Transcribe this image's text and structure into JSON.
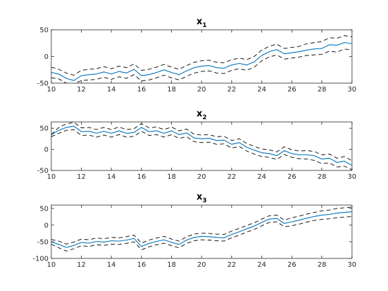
{
  "chart_data": [
    {
      "type": "line",
      "title": "x",
      "title_subscript": "1",
      "xlim": [
        10,
        30
      ],
      "ylim": [
        -50,
        50
      ],
      "xticks": [
        10,
        12,
        14,
        16,
        18,
        20,
        22,
        24,
        26,
        28,
        30
      ],
      "yticks": [
        -50,
        0,
        50
      ],
      "x": [
        10.0,
        10.5,
        11.0,
        11.5,
        12.0,
        12.5,
        13.0,
        13.5,
        14.0,
        14.5,
        15.0,
        15.5,
        16.0,
        16.5,
        17.0,
        17.5,
        18.0,
        18.5,
        19.0,
        19.5,
        20.0,
        20.5,
        21.0,
        21.5,
        22.0,
        22.5,
        23.0,
        23.5,
        24.0,
        24.5,
        25.0,
        25.5,
        26.0,
        26.5,
        27.0,
        27.5,
        28.0,
        28.5,
        29.0,
        29.5,
        30.0
      ],
      "series": [
        {
          "role": "estimate",
          "color": "#0072BD",
          "style": "solid",
          "values": [
            -30,
            -33,
            -41,
            -45,
            -36,
            -34,
            -33,
            -29,
            -33,
            -28,
            -31,
            -24,
            -36,
            -34,
            -30,
            -25,
            -30,
            -34,
            -27,
            -21,
            -18,
            -17,
            -21,
            -22,
            -16,
            -13,
            -16,
            -10,
            2,
            9,
            13,
            5,
            7,
            9,
            12,
            14,
            15,
            22,
            21,
            26,
            24
          ]
        },
        {
          "role": "upper_bound",
          "color": "#000000",
          "style": "dashed",
          "values": [
            -20,
            -24,
            -31,
            -35,
            -26,
            -24,
            -23,
            -19,
            -23,
            -18,
            -21,
            -14,
            -26,
            -24,
            -20,
            -15,
            -20,
            -24,
            -17,
            -11,
            -8,
            -7,
            -11,
            -12,
            -6,
            -3,
            -6,
            0,
            12,
            19,
            23,
            15,
            17,
            19,
            24,
            26,
            28,
            35,
            34,
            39,
            37
          ]
        },
        {
          "role": "lower_bound",
          "color": "#000000",
          "style": "dashed",
          "values": [
            -40,
            -42,
            -50,
            -52,
            -45,
            -44,
            -43,
            -39,
            -43,
            -38,
            -41,
            -34,
            -46,
            -44,
            -40,
            -35,
            -40,
            -44,
            -37,
            -31,
            -28,
            -27,
            -31,
            -32,
            -26,
            -23,
            -26,
            -20,
            -8,
            -1,
            3,
            -5,
            -3,
            -1,
            2,
            3,
            4,
            10,
            8,
            14,
            12
          ]
        }
      ]
    },
    {
      "type": "line",
      "title": "x",
      "title_subscript": "2",
      "xlim": [
        10,
        30
      ],
      "ylim": [
        -50,
        65
      ],
      "xticks": [
        10,
        12,
        14,
        16,
        18,
        20,
        22,
        24,
        26,
        28,
        30
      ],
      "yticks": [
        -50,
        0,
        50
      ],
      "x": [
        10.0,
        10.5,
        11.0,
        11.5,
        12.0,
        12.5,
        13.0,
        13.5,
        14.0,
        14.5,
        15.0,
        15.5,
        16.0,
        16.5,
        17.0,
        17.5,
        18.0,
        18.5,
        19.0,
        19.5,
        20.0,
        20.5,
        21.0,
        21.5,
        22.0,
        22.5,
        23.0,
        23.5,
        24.0,
        24.5,
        25.0,
        25.5,
        26.0,
        26.5,
        27.0,
        27.5,
        28.0,
        28.5,
        29.0,
        29.5,
        30.0
      ],
      "series": [
        {
          "role": "estimate",
          "color": "#0072BD",
          "style": "solid",
          "values": [
            35,
            45,
            52,
            55,
            42,
            43,
            38,
            43,
            38,
            44,
            38,
            40,
            52,
            42,
            44,
            38,
            44,
            35,
            39,
            27,
            25,
            26,
            21,
            22,
            12,
            16,
            5,
            -2,
            -8,
            -10,
            -15,
            -3,
            -10,
            -13,
            -13,
            -15,
            -23,
            -21,
            -31,
            -28,
            -38
          ]
        },
        {
          "role": "upper_bound",
          "color": "#000000",
          "style": "dashed",
          "values": [
            35,
            52,
            60,
            64,
            51,
            52,
            47,
            52,
            47,
            53,
            47,
            49,
            61,
            51,
            53,
            47,
            53,
            44,
            48,
            36,
            34,
            35,
            30,
            31,
            21,
            25,
            14,
            7,
            1,
            -1,
            -6,
            6,
            -1,
            -4,
            -3,
            -5,
            -13,
            -11,
            -21,
            -17,
            -27
          ]
        },
        {
          "role": "lower_bound",
          "color": "#000000",
          "style": "dashed",
          "values": [
            30,
            38,
            45,
            47,
            33,
            34,
            29,
            34,
            29,
            35,
            29,
            31,
            43,
            33,
            35,
            29,
            35,
            26,
            30,
            18,
            16,
            17,
            12,
            13,
            3,
            7,
            -4,
            -11,
            -17,
            -19,
            -24,
            -12,
            -19,
            -22,
            -23,
            -26,
            -34,
            -32,
            -42,
            -40,
            -48
          ]
        }
      ]
    },
    {
      "type": "line",
      "title": "x",
      "title_subscript": "3",
      "xlim": [
        10,
        30
      ],
      "ylim": [
        -100,
        60
      ],
      "xticks": [
        10,
        12,
        14,
        16,
        18,
        20,
        22,
        24,
        26,
        28,
        30
      ],
      "yticks": [
        -100,
        -50,
        0,
        50
      ],
      "x": [
        10.0,
        10.5,
        11.0,
        11.5,
        12.0,
        12.5,
        13.0,
        13.5,
        14.0,
        14.5,
        15.0,
        15.5,
        16.0,
        16.5,
        17.0,
        17.5,
        18.0,
        18.5,
        19.0,
        19.5,
        20.0,
        20.5,
        21.0,
        21.5,
        22.0,
        22.5,
        23.0,
        23.5,
        24.0,
        24.5,
        25.0,
        25.5,
        26.0,
        26.5,
        27.0,
        27.5,
        28.0,
        28.5,
        29.0,
        29.5,
        30.0
      ],
      "series": [
        {
          "role": "estimate",
          "color": "#0072BD",
          "style": "solid",
          "values": [
            -50,
            -58,
            -67,
            -61,
            -52,
            -54,
            -49,
            -51,
            -47,
            -48,
            -45,
            -40,
            -64,
            -55,
            -49,
            -44,
            -52,
            -58,
            -45,
            -37,
            -34,
            -35,
            -37,
            -38,
            -28,
            -20,
            -11,
            -3,
            8,
            18,
            20,
            5,
            10,
            15,
            21,
            26,
            30,
            32,
            36,
            38,
            40
          ]
        },
        {
          "role": "upper_bound",
          "color": "#000000",
          "style": "dashed",
          "values": [
            -43,
            -48,
            -57,
            -51,
            -42,
            -44,
            -39,
            -41,
            -37,
            -38,
            -35,
            -30,
            -54,
            -45,
            -39,
            -34,
            -42,
            -48,
            -35,
            -27,
            -24,
            -25,
            -27,
            -28,
            -18,
            -10,
            -1,
            7,
            18,
            28,
            30,
            15,
            22,
            27,
            33,
            38,
            43,
            45,
            50,
            52,
            54
          ]
        },
        {
          "role": "lower_bound",
          "color": "#000000",
          "style": "dashed",
          "values": [
            -57,
            -68,
            -78,
            -71,
            -62,
            -64,
            -59,
            -61,
            -57,
            -58,
            -55,
            -50,
            -74,
            -65,
            -59,
            -54,
            -62,
            -68,
            -55,
            -47,
            -44,
            -45,
            -47,
            -48,
            -38,
            -30,
            -21,
            -13,
            -2,
            8,
            10,
            -5,
            -2,
            3,
            9,
            14,
            17,
            19,
            22,
            24,
            26
          ]
        }
      ]
    }
  ]
}
